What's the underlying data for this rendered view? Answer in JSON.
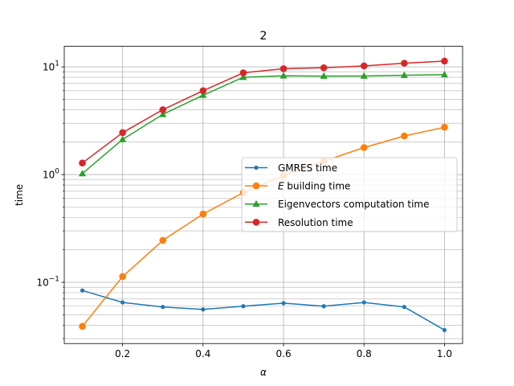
{
  "chart_data": {
    "type": "line",
    "title": "2",
    "xlabel": "α",
    "ylabel": "time",
    "yscale": "log",
    "xlim": [
      0.055,
      1.045
    ],
    "ylim": [
      0.027,
      15.5
    ],
    "grid": "on (major and minor)",
    "legend_position": "center-right",
    "x": [
      0.1,
      0.2,
      0.3,
      0.4,
      0.5,
      0.6,
      0.7,
      0.8,
      0.9,
      1.0
    ],
    "xticks": [
      "0.2",
      "0.4",
      "0.6",
      "0.8",
      "1.0"
    ],
    "yticks": [
      {
        "base": "10",
        "exp": "−1"
      },
      {
        "base": "10",
        "exp": "0"
      },
      {
        "base": "10",
        "exp": "1"
      }
    ],
    "series": [
      {
        "name": "GMRES time",
        "color": "#1f77b4",
        "marker": "small-circle",
        "values": [
          0.084,
          0.065,
          0.059,
          0.056,
          0.06,
          0.064,
          0.06,
          0.065,
          0.059,
          0.036
        ]
      },
      {
        "name": "building time",
        "name_prefix": "E",
        "color": "#ff7f0e",
        "marker": "circle",
        "values": [
          0.039,
          0.113,
          0.245,
          0.43,
          0.68,
          0.98,
          1.33,
          1.78,
          2.28,
          2.75
        ]
      },
      {
        "name": "Eigenvectors computation time",
        "color": "#2ca02c",
        "marker": "triangle",
        "values": [
          1.02,
          2.12,
          3.62,
          5.45,
          8.0,
          8.25,
          8.2,
          8.22,
          8.35,
          8.45
        ]
      },
      {
        "name": "Resolution time",
        "color": "#d62728",
        "marker": "circle",
        "values": [
          1.28,
          2.45,
          4.0,
          6.0,
          8.8,
          9.6,
          9.8,
          10.2,
          10.8,
          11.3
        ]
      }
    ]
  }
}
